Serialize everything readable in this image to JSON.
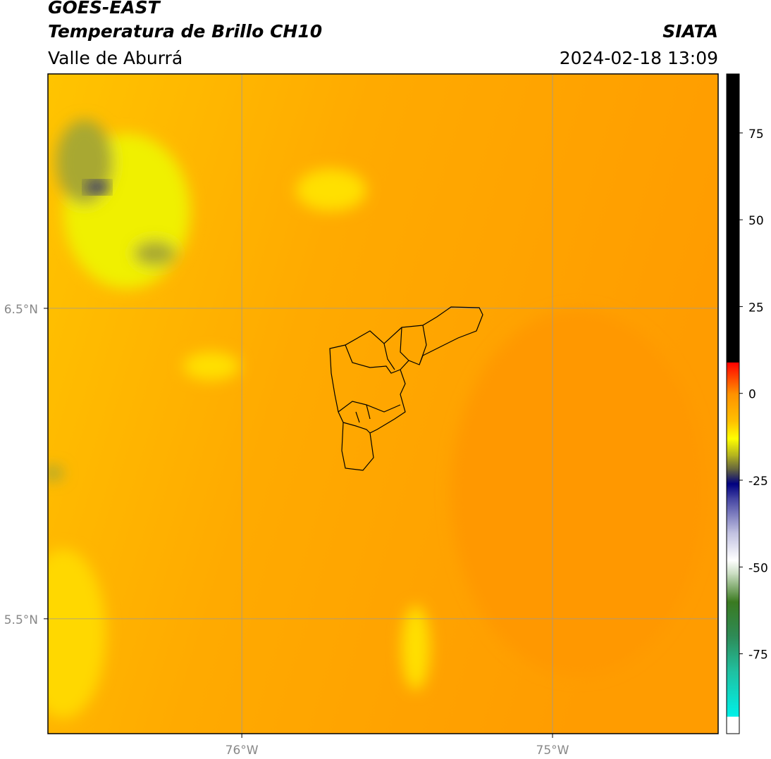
{
  "chart_data": {
    "type": "map",
    "title": "GOES-EAST",
    "subtitle": "Temperatura de Brillo CH10",
    "region": "Valle de Aburrá",
    "source": "SIATA",
    "datetime": "2024-02-18 13:09",
    "xlim": [
      -76.624,
      -74.467
    ],
    "ylim": [
      5.13,
      7.255
    ],
    "xticks": [
      {
        "value": -76,
        "label": "76°W"
      },
      {
        "value": -75,
        "label": "75°W"
      }
    ],
    "yticks": [
      {
        "value": 6.5,
        "label": "6.5°N"
      },
      {
        "value": 5.5,
        "label": "5.5°N"
      }
    ],
    "grid": true,
    "colorbar": {
      "lim": [
        -98,
        92
      ],
      "ticks": [
        75,
        50,
        25,
        0,
        -25,
        -50,
        -75
      ],
      "stops": [
        {
          "value": -98,
          "color": "#ffffff"
        },
        {
          "value": -93,
          "color": "#ffffff"
        },
        {
          "value": -93,
          "color": "#00f0e8"
        },
        {
          "value": -80,
          "color": "#20c0a0"
        },
        {
          "value": -70,
          "color": "#2e8b57"
        },
        {
          "value": -60,
          "color": "#3a7a20"
        },
        {
          "value": -52,
          "color": "#c8dcc0"
        },
        {
          "value": -48,
          "color": "#ffffff"
        },
        {
          "value": -40,
          "color": "#c0c0e0"
        },
        {
          "value": -30,
          "color": "#4040a0"
        },
        {
          "value": -26,
          "color": "#000080"
        },
        {
          "value": -22,
          "color": "#606040"
        },
        {
          "value": -18,
          "color": "#b0b020"
        },
        {
          "value": -13,
          "color": "#ffff00"
        },
        {
          "value": -8,
          "color": "#ffc000"
        },
        {
          "value": 0,
          "color": "#ff9000"
        },
        {
          "value": 4,
          "color": "#ff5000"
        },
        {
          "value": 9,
          "color": "#ff0000"
        },
        {
          "value": 9,
          "color": "#000000"
        },
        {
          "value": 92,
          "color": "#000000"
        }
      ]
    }
  }
}
